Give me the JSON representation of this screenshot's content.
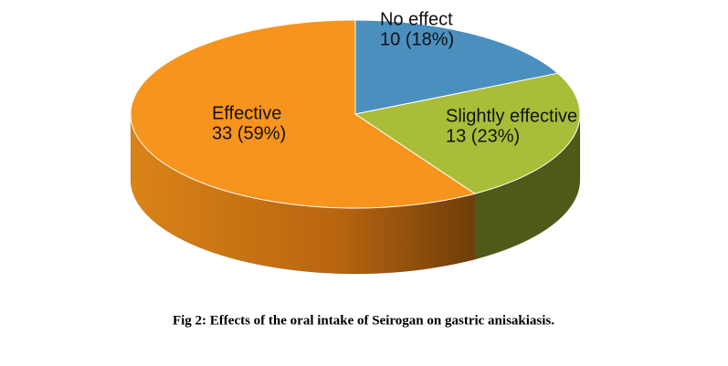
{
  "chart_data": {
    "type": "pie",
    "title": "Fig 2: Effects of the oral intake of Seirogan on gastric anisakiasis.",
    "categories": [
      "No effect",
      "Slightly effective",
      "Effective"
    ],
    "values": [
      10,
      13,
      33
    ],
    "value_labels": [
      "10 (18%)",
      "13 (23%)",
      "33 (59%)"
    ],
    "colors": [
      "#4b8fbf",
      "#a9bd38",
      "#f7941d"
    ]
  }
}
